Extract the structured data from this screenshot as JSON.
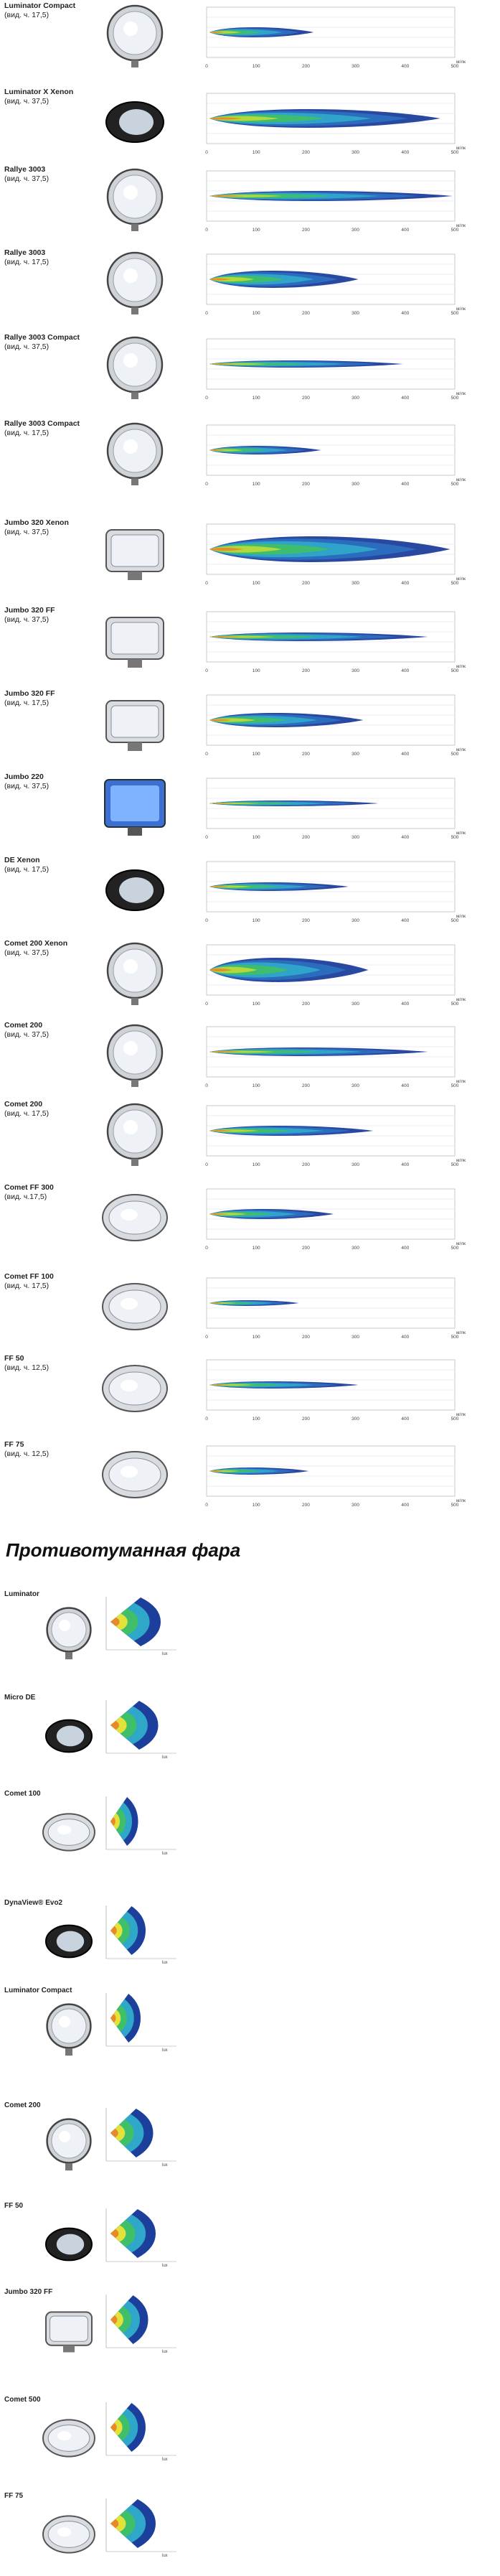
{
  "high_beam_units": "м/лк",
  "fog_unit": "lux",
  "driving_lamps": [
    {
      "name": "Luminator Compact",
      "sub": "(вид. ч. 17,5)"
    },
    {
      "name": "Luminator X Xenon",
      "sub": "(вид. ч. 37,5)"
    },
    {
      "name": "Rallye 3003",
      "sub": "(вид. ч. 37,5)"
    },
    {
      "name": "Rallye 3003",
      "sub": "(вид. ч. 17,5)"
    },
    {
      "name": "Rallye 3003 Compact",
      "sub": "(вид. ч. 37,5)"
    },
    {
      "name": "Rallye 3003 Compact",
      "sub": "(вид. ч. 17,5)"
    },
    {
      "name": "Jumbo 320 Xenon",
      "sub": "(вид. ч. 37,5)"
    },
    {
      "name": "Jumbo 320 FF",
      "sub": "(вид. ч. 37,5)"
    },
    {
      "name": "Jumbo 320 FF",
      "sub": "(вид. ч. 17,5)"
    },
    {
      "name": "Jumbo 220",
      "sub": "(вид. ч. 37,5)"
    },
    {
      "name": "DE Xenon",
      "sub": "(вид. ч. 17,5)"
    },
    {
      "name": "Comet 200 Xenon",
      "sub": "(вид. ч. 37,5)"
    },
    {
      "name": "Comet 200",
      "sub": "(вид. ч. 37,5)"
    },
    {
      "name": "Comet 200",
      "sub": "(вид. ч. 17,5)"
    },
    {
      "name": "Comet FF 300",
      "sub": "(вид. ч.17,5)"
    },
    {
      "name": "Comet FF 100",
      "sub": "(вид. ч. 17,5)"
    },
    {
      "name": "FF 50",
      "sub": "(вид. ч. 12,5)"
    },
    {
      "name": "FF 75",
      "sub": "(вид. ч. 12,5)"
    }
  ],
  "section_title": "Противотуманная фара",
  "fog_lamps": [
    {
      "name": "Luminator"
    },
    {
      "name": "Micro DE"
    },
    {
      "name": "Comet 100"
    },
    {
      "name": "DynaView® Evo2"
    },
    {
      "name": "Luminator Compact"
    },
    {
      "name": "Comet 200"
    },
    {
      "name": "FF 50"
    },
    {
      "name": "Jumbo 320 FF"
    },
    {
      "name": "Comet 500"
    },
    {
      "name": "FF 75"
    }
  ],
  "x_ticks": [
    "0",
    "100",
    "200",
    "300",
    "400",
    "500"
  ],
  "colors": {
    "blue": "#1d3f9c",
    "cyan": "#2fa7c9",
    "green": "#3fbf6a",
    "yellow": "#e4e23a",
    "orange": "#e98a2a",
    "chrome": "#c9ccd1"
  }
}
